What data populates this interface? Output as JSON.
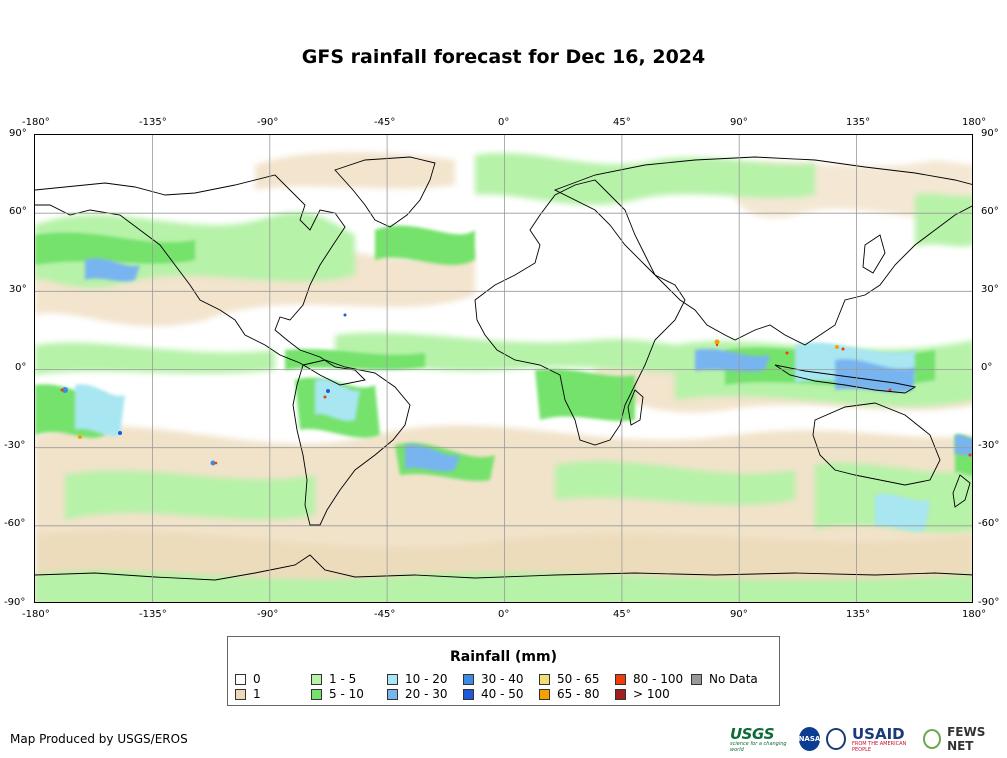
{
  "title": "GFS rainfall forecast for Dec 16, 2024",
  "map": {
    "lon_ticks": [
      "-180°",
      "-135°",
      "-90°",
      "-45°",
      "0°",
      "45°",
      "90°",
      "135°",
      "180°"
    ],
    "lat_ticks": [
      "90°",
      "60°",
      "30°",
      "0°",
      "-30°",
      "-60°",
      "-90°"
    ]
  },
  "legend": {
    "title": "Rainfall (mm)",
    "items": [
      {
        "label": "0",
        "color": "#ffffff"
      },
      {
        "label": "1",
        "color": "#ecd9b8"
      },
      {
        "label": "1 - 5",
        "color": "#b6f2a8"
      },
      {
        "label": "5 - 10",
        "color": "#74e26c"
      },
      {
        "label": "10 - 20",
        "color": "#a8e6f2"
      },
      {
        "label": "20 - 30",
        "color": "#78b4f0"
      },
      {
        "label": "30 - 40",
        "color": "#3c8ce6"
      },
      {
        "label": "40 - 50",
        "color": "#1e5ad8"
      },
      {
        "label": "50 - 65",
        "color": "#f2dc78"
      },
      {
        "label": "65 - 80",
        "color": "#f5a000"
      },
      {
        "label": "80 - 100",
        "color": "#f03c0a"
      },
      {
        "label": "> 100",
        "color": "#a01e1e"
      },
      {
        "label": "No Data",
        "color": "#999999"
      }
    ]
  },
  "credit": "Map Produced by USGS/EROS",
  "logos": {
    "usgs": "USGS",
    "usgs_tagline": "science for a changing world",
    "nasa": "NASA",
    "usaid": "USAID",
    "usaid_tagline": "FROM THE AMERICAN PEOPLE",
    "fews": "FEWS NET"
  }
}
